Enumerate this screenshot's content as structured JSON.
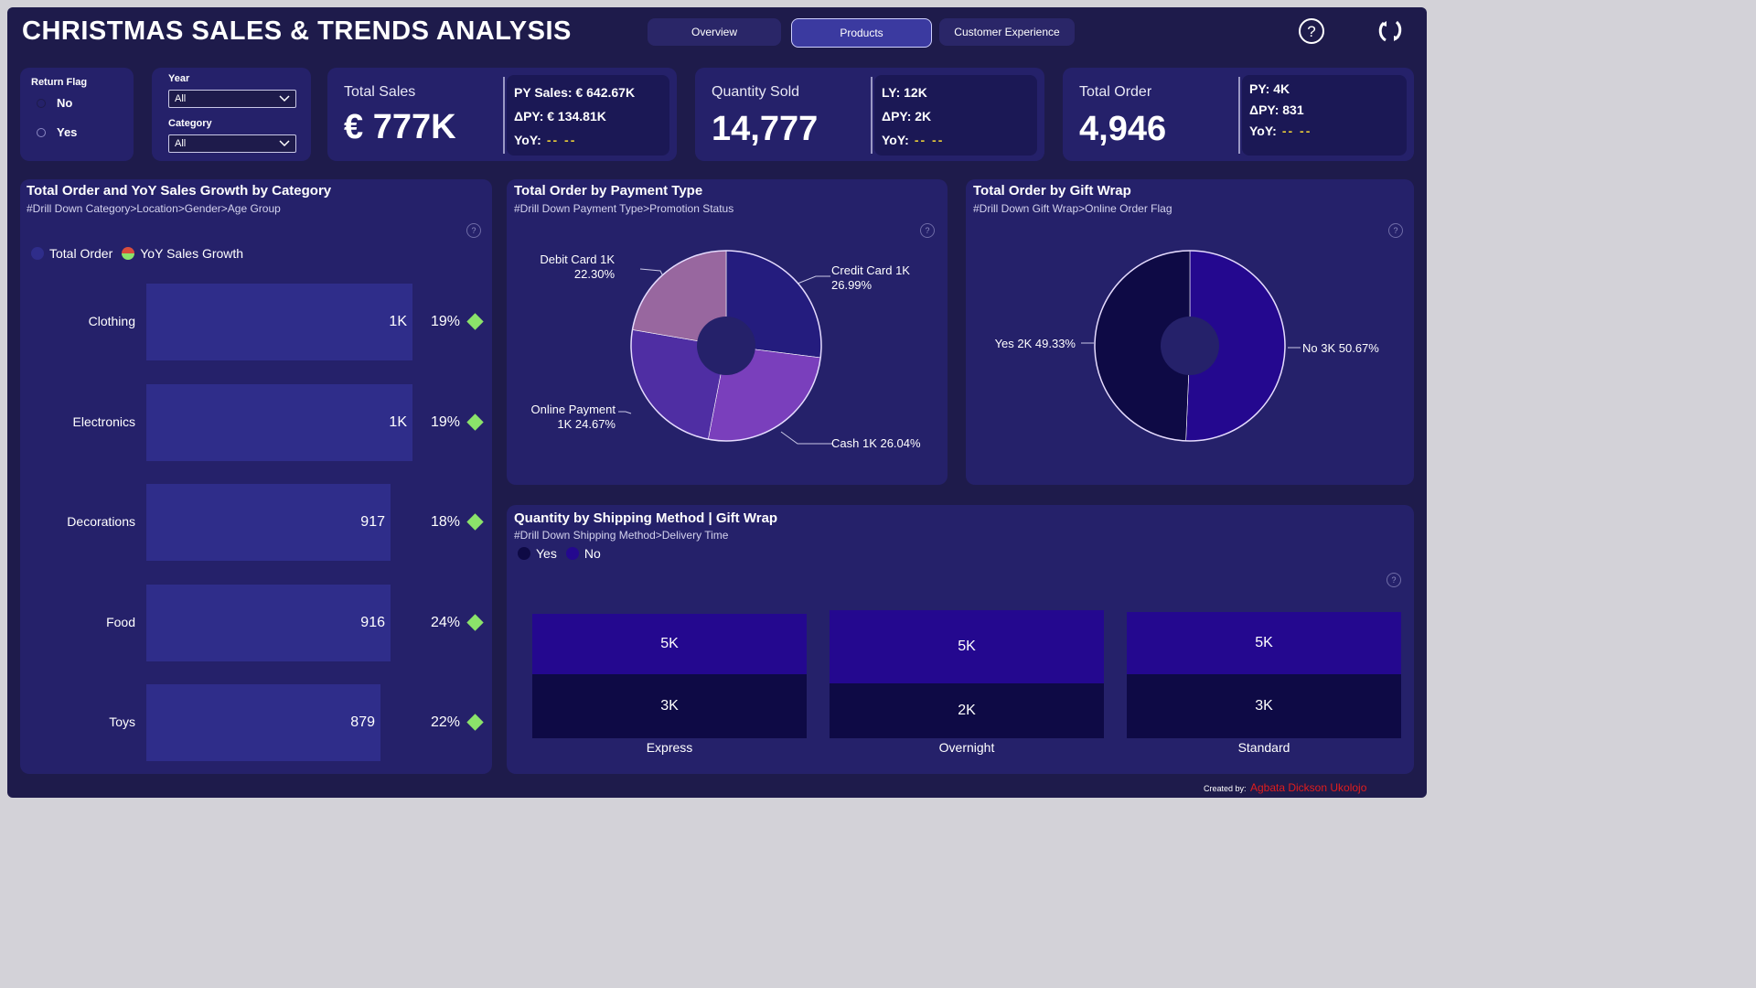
{
  "header": {
    "title": "CHRISTMAS SALES & TRENDS ANALYSIS",
    "tabs": [
      {
        "label": "Overview",
        "active": false
      },
      {
        "label": "Products",
        "active": true
      },
      {
        "label": "Customer Experience",
        "active": false
      }
    ],
    "icons": [
      "help-icon",
      "refresh-icon"
    ]
  },
  "filters": {
    "return_flag": {
      "label": "Return Flag",
      "options": [
        "No",
        "Yes"
      ]
    },
    "year": {
      "label": "Year",
      "value": "All"
    },
    "category": {
      "label": "Category",
      "value": "All"
    }
  },
  "kpis": [
    {
      "title": "Total Sales",
      "value": "€ 777K",
      "lines": [
        {
          "text": "PY Sales: € 642.67K"
        },
        {
          "text": "ΔPY: € 134.81K"
        },
        {
          "text": "YoY:",
          "dash": "-- --"
        }
      ]
    },
    {
      "title": "Quantity Sold",
      "value": "14,777",
      "lines": [
        {
          "text": "LY: 12K"
        },
        {
          "text": "ΔPY: 2K"
        },
        {
          "text": "YoY:",
          "dash": "-- --"
        }
      ]
    },
    {
      "title": "Total Order",
      "value": "4,946",
      "lines": [
        {
          "text": "PY: 4K"
        },
        {
          "text": "ΔPY: 831"
        },
        {
          "text": "YoY:",
          "dash": "-- --"
        }
      ]
    }
  ],
  "category_chart": {
    "title": "Total Order and YoY Sales Growth by Category",
    "subtitle": "#Drill Down Category>Location>Gender>Age Group",
    "legend": [
      "Total Order",
      "YoY Sales Growth"
    ]
  },
  "payment_chart": {
    "title": "Total Order by Payment Type",
    "subtitle": "#Drill Down Payment Type>Promotion Status",
    "labels": {
      "debit": [
        "Debit Card 1K",
        "22.30%"
      ],
      "credit": [
        "Credit Card 1K",
        "26.99%"
      ],
      "online": [
        "Online Payment",
        "1K 24.67%"
      ],
      "cash": "Cash 1K 26.04%"
    }
  },
  "giftwrap_chart": {
    "title": "Total Order by Gift Wrap",
    "subtitle": "#Drill Down Gift Wrap>Online Order Flag",
    "labels": {
      "yes": "Yes 2K 49.33%",
      "no": "No 3K 50.67%"
    }
  },
  "shipping_chart": {
    "title": "Quantity by Shipping Method | Gift Wrap",
    "subtitle": "#Drill Down Shipping Method>Delivery Time",
    "legend": [
      "Yes",
      "No"
    ]
  },
  "footer": {
    "created_by": "Created by:",
    "author": "Agbata Dickson Ukolojo"
  },
  "colors": {
    "background": "#1e1b4b",
    "panel": "#25216a",
    "bar": "#2f2d8a",
    "growth_marker": "#8be36a",
    "gift_yes": "#0e0a45",
    "gift_no": "#24088f",
    "accent_dash": "#e3c73a"
  },
  "chart_data": [
    {
      "type": "bar",
      "orientation": "horizontal",
      "categories": [
        "Clothing",
        "Electronics",
        "Decorations",
        "Food",
        "Toys"
      ],
      "series": [
        {
          "name": "Total Order",
          "values": [
            1000,
            1000,
            917,
            916,
            879
          ],
          "labels": [
            "1K",
            "1K",
            "917",
            "916",
            "879"
          ]
        },
        {
          "name": "YoY Sales Growth",
          "values": [
            19,
            19,
            18,
            24,
            22
          ],
          "labels": [
            "19%",
            "19%",
            "18%",
            "24%",
            "22%"
          ]
        }
      ]
    },
    {
      "type": "pie",
      "style": "donut",
      "slices": [
        {
          "label": "Credit Card",
          "value_label": "1K",
          "percent": 26.99,
          "color": "#241c7e"
        },
        {
          "label": "Cash",
          "value_label": "1K",
          "percent": 26.04,
          "color": "#7a3fbc"
        },
        {
          "label": "Online Payment",
          "value_label": "1K",
          "percent": 24.67,
          "color": "#4f2ea3"
        },
        {
          "label": "Debit Card",
          "value_label": "1K",
          "percent": 22.3,
          "color": "#98679f"
        }
      ]
    },
    {
      "type": "pie",
      "style": "donut",
      "slices": [
        {
          "label": "No",
          "value_label": "3K",
          "percent": 50.67,
          "color": "#24088f"
        },
        {
          "label": "Yes",
          "value_label": "2K",
          "percent": 49.33,
          "color": "#0e0a45"
        }
      ]
    },
    {
      "type": "bar",
      "stacked": true,
      "categories": [
        "Express",
        "Overnight",
        "Standard"
      ],
      "series": [
        {
          "name": "No",
          "values": [
            5000,
            5000,
            5000
          ],
          "labels": [
            "5K",
            "5K",
            "5K"
          ],
          "color": "#24088f"
        },
        {
          "name": "Yes",
          "values": [
            3000,
            2000,
            3000
          ],
          "labels": [
            "3K",
            "2K",
            "3K"
          ],
          "color": "#0e0a45"
        }
      ]
    }
  ]
}
